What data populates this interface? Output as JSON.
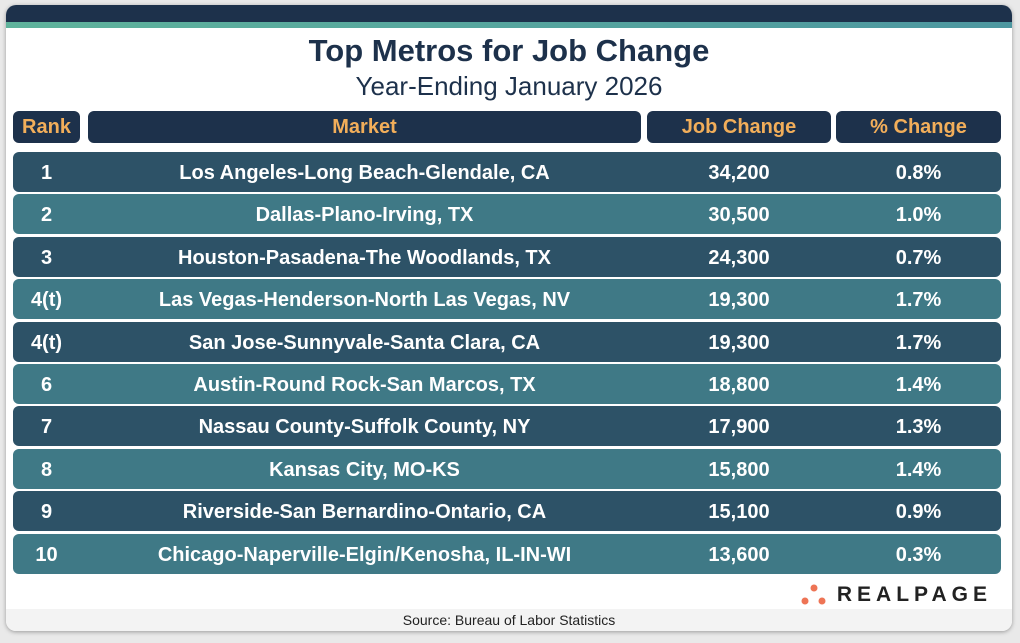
{
  "header": {
    "title": "Top Metros for Job Change",
    "subtitle": "Year-Ending January 2026"
  },
  "chart_data": {
    "type": "table",
    "title": "Top Metros for Job Change",
    "subtitle": "Year-Ending January 2026",
    "columns": [
      "Rank",
      "Market",
      "Job Change",
      "% Change"
    ],
    "rows": [
      [
        "1",
        "Los Angeles-Long Beach-Glendale, CA",
        "34,200",
        "0.8%"
      ],
      [
        "2",
        "Dallas-Plano-Irving, TX",
        "30,500",
        "1.0%"
      ],
      [
        "3",
        "Houston-Pasadena-The Woodlands, TX",
        "24,300",
        "0.7%"
      ],
      [
        "4(t)",
        "Las Vegas-Henderson-North Las Vegas, NV",
        "19,300",
        "1.7%"
      ],
      [
        "4(t)",
        "San Jose-Sunnyvale-Santa Clara, CA",
        "19,300",
        "1.7%"
      ],
      [
        "6",
        "Austin-Round Rock-San Marcos, TX",
        "18,800",
        "1.4%"
      ],
      [
        "7",
        "Nassau County-Suffolk County, NY",
        "17,900",
        "1.3%"
      ],
      [
        "8",
        "Kansas City, MO-KS",
        "15,800",
        "1.4%"
      ],
      [
        "9",
        "Riverside-San Bernardino-Ontario, CA",
        "15,100",
        "0.9%"
      ],
      [
        "10",
        "Chicago-Naperville-Elgin/Kenosha, IL-IN-WI",
        "13,600",
        "0.3%"
      ]
    ]
  },
  "colors": {
    "navy": "#1d314b",
    "header_text": "#f2ae5a",
    "row_dark": "#2d5267",
    "row_light": "#3f7986",
    "logo_dots": "#ee7455"
  },
  "logo": {
    "text": "REALPAGE"
  },
  "footer": {
    "source": "Source: Bureau of Labor Statistics"
  }
}
